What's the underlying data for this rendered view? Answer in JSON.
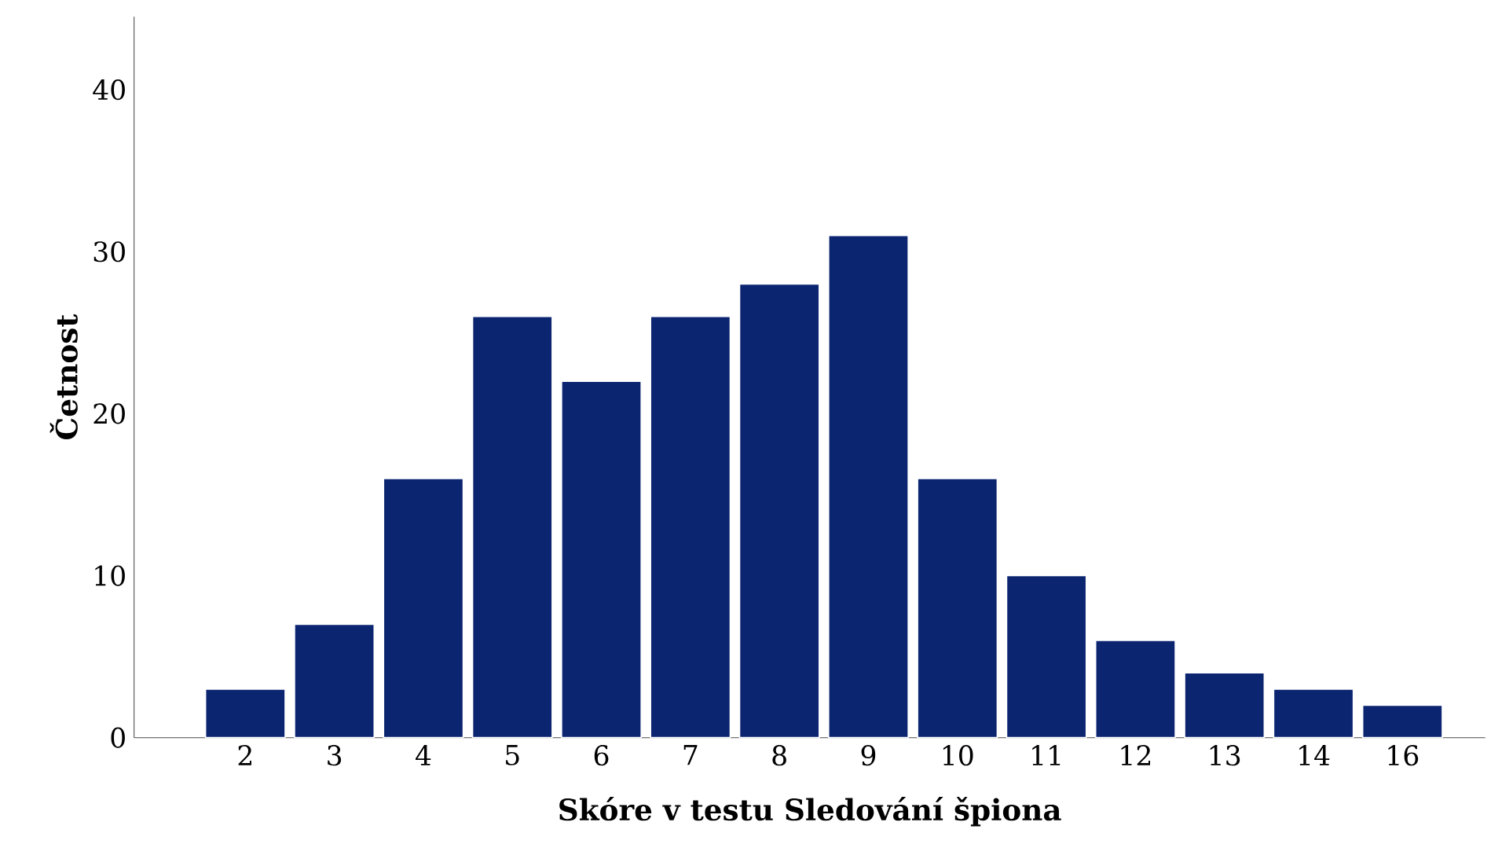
{
  "chart_data": {
    "type": "bar",
    "xlabel": "Skóre v testu Sledování špiona",
    "ylabel": "Četnost",
    "categories": [
      "2",
      "3",
      "4",
      "5",
      "6",
      "7",
      "8",
      "9",
      "10",
      "11",
      "12",
      "13",
      "14",
      "16"
    ],
    "values": [
      3,
      7,
      16,
      26,
      22,
      26,
      28,
      31,
      16,
      10,
      6,
      4,
      3,
      2
    ],
    "color": "#0b2570",
    "ylim": [
      0,
      44.5
    ],
    "yticks": [
      0,
      10,
      20,
      30,
      40
    ]
  }
}
